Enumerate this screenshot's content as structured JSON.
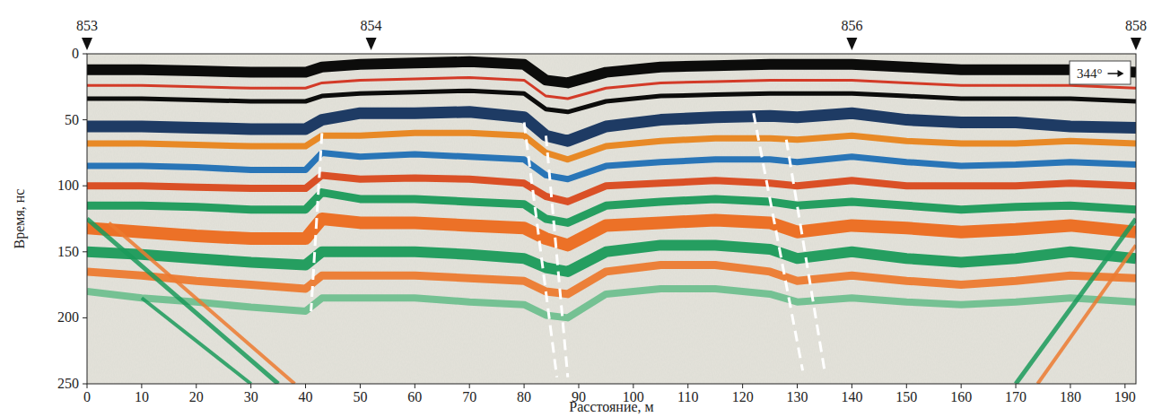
{
  "chart_data": {
    "type": "radargram",
    "x_label": "Расстояние, м",
    "y_label": "Время, нс",
    "xlim": [
      0,
      192
    ],
    "ylim": [
      0,
      250
    ],
    "xticks": [
      0,
      10,
      20,
      30,
      40,
      50,
      60,
      70,
      80,
      90,
      100,
      110,
      120,
      130,
      140,
      150,
      160,
      170,
      180,
      190
    ],
    "yticks": [
      0,
      50,
      100,
      150,
      200,
      250
    ],
    "direction_label": "344°",
    "pickets": [
      {
        "x": 0,
        "label": "853"
      },
      {
        "x": 52,
        "label": "854"
      },
      {
        "x": 140,
        "label": "856"
      },
      {
        "x": 192,
        "label": "858"
      }
    ],
    "series": [
      {
        "color": "#000000",
        "x": [
          0,
          10,
          20,
          30,
          40,
          43,
          50,
          60,
          70,
          80,
          84,
          88,
          95,
          105,
          115,
          125,
          130,
          140,
          150,
          160,
          170,
          180,
          192
        ],
        "values": [
          12,
          12,
          13,
          14,
          14,
          10,
          8,
          7,
          6,
          8,
          20,
          22,
          14,
          10,
          9,
          8,
          8,
          8,
          10,
          12,
          12,
          12,
          14
        ]
      },
      {
        "color": "#d2301e",
        "x": [
          0,
          10,
          20,
          30,
          40,
          43,
          50,
          60,
          70,
          80,
          84,
          88,
          95,
          105,
          115,
          125,
          130,
          140,
          150,
          160,
          170,
          180,
          192
        ],
        "values": [
          24,
          24,
          25,
          26,
          26,
          22,
          20,
          19,
          18,
          20,
          32,
          34,
          26,
          22,
          21,
          20,
          20,
          20,
          22,
          24,
          24,
          24,
          26
        ]
      },
      {
        "color": "#000000",
        "x": [
          0,
          10,
          20,
          30,
          40,
          43,
          50,
          60,
          70,
          80,
          84,
          88,
          95,
          105,
          115,
          125,
          130,
          140,
          150,
          160,
          170,
          180,
          192
        ],
        "values": [
          34,
          34,
          35,
          36,
          36,
          32,
          30,
          29,
          28,
          30,
          42,
          44,
          36,
          32,
          31,
          30,
          30,
          30,
          32,
          34,
          34,
          34,
          36
        ]
      },
      {
        "color": "#13325e",
        "x": [
          0,
          10,
          20,
          30,
          40,
          43,
          50,
          60,
          70,
          80,
          84,
          88,
          95,
          105,
          115,
          125,
          130,
          140,
          150,
          160,
          170,
          180,
          192
        ],
        "values": [
          55,
          55,
          56,
          57,
          57,
          50,
          45,
          45,
          44,
          48,
          62,
          66,
          55,
          50,
          48,
          47,
          48,
          45,
          50,
          52,
          52,
          55,
          56
        ]
      },
      {
        "color": "#e8841c",
        "x": [
          0,
          10,
          20,
          30,
          40,
          43,
          50,
          60,
          70,
          80,
          84,
          88,
          95,
          105,
          115,
          125,
          130,
          140,
          150,
          160,
          170,
          180,
          192
        ],
        "values": [
          68,
          68,
          69,
          70,
          70,
          62,
          62,
          60,
          60,
          62,
          75,
          80,
          70,
          66,
          64,
          64,
          65,
          62,
          66,
          68,
          68,
          66,
          68
        ]
      },
      {
        "color": "#1f6fb5",
        "x": [
          0,
          10,
          20,
          30,
          40,
          43,
          50,
          60,
          70,
          80,
          84,
          88,
          95,
          105,
          115,
          125,
          130,
          140,
          150,
          160,
          170,
          180,
          192
        ],
        "values": [
          85,
          85,
          86,
          88,
          88,
          75,
          78,
          76,
          78,
          80,
          92,
          95,
          85,
          82,
          80,
          80,
          82,
          78,
          82,
          85,
          84,
          82,
          84
        ]
      },
      {
        "color": "#d9481c",
        "x": [
          0,
          10,
          20,
          30,
          40,
          43,
          50,
          60,
          70,
          80,
          84,
          88,
          95,
          105,
          115,
          125,
          130,
          140,
          150,
          160,
          170,
          180,
          192
        ],
        "values": [
          100,
          100,
          101,
          102,
          102,
          92,
          95,
          94,
          95,
          98,
          108,
          112,
          100,
          98,
          96,
          98,
          100,
          96,
          100,
          100,
          100,
          98,
          100
        ]
      },
      {
        "color": "#1a9a5a",
        "x": [
          0,
          10,
          20,
          30,
          40,
          43,
          50,
          60,
          70,
          80,
          84,
          88,
          95,
          105,
          115,
          125,
          130,
          140,
          150,
          160,
          170,
          180,
          192
        ],
        "values": [
          115,
          115,
          116,
          118,
          118,
          105,
          110,
          110,
          112,
          114,
          125,
          128,
          115,
          112,
          110,
          112,
          115,
          112,
          115,
          118,
          116,
          115,
          118
        ]
      },
      {
        "color": "#ec6a1e",
        "x": [
          0,
          10,
          20,
          30,
          40,
          43,
          50,
          60,
          70,
          80,
          84,
          88,
          95,
          105,
          115,
          125,
          130,
          140,
          150,
          160,
          170,
          180,
          192
        ],
        "values": [
          132,
          135,
          138,
          140,
          140,
          125,
          128,
          128,
          130,
          132,
          140,
          145,
          130,
          128,
          126,
          128,
          135,
          130,
          132,
          135,
          133,
          130,
          135
        ]
      },
      {
        "color": "#1a9a5a",
        "x": [
          0,
          10,
          20,
          30,
          40,
          43,
          50,
          60,
          70,
          80,
          84,
          88,
          95,
          105,
          115,
          125,
          130,
          140,
          150,
          160,
          170,
          180,
          192
        ],
        "values": [
          150,
          152,
          155,
          158,
          160,
          150,
          150,
          150,
          152,
          155,
          162,
          165,
          150,
          145,
          145,
          148,
          155,
          150,
          155,
          158,
          155,
          150,
          155
        ]
      },
      {
        "color": "#ec7a30",
        "x": [
          0,
          10,
          20,
          30,
          40,
          43,
          50,
          60,
          70,
          80,
          84,
          88,
          95,
          105,
          115,
          125,
          130,
          140,
          150,
          160,
          170,
          180,
          192
        ],
        "values": [
          165,
          168,
          172,
          175,
          178,
          168,
          168,
          168,
          170,
          172,
          180,
          182,
          165,
          160,
          160,
          165,
          172,
          168,
          172,
          175,
          172,
          168,
          170
        ]
      },
      {
        "color": "#6fbf8f",
        "x": [
          0,
          10,
          20,
          30,
          40,
          43,
          50,
          60,
          70,
          80,
          84,
          88,
          95,
          105,
          115,
          125,
          130,
          140,
          150,
          160,
          170,
          180,
          192
        ],
        "values": [
          180,
          185,
          188,
          192,
          195,
          185,
          185,
          185,
          188,
          190,
          198,
          200,
          182,
          178,
          178,
          182,
          188,
          185,
          188,
          190,
          188,
          185,
          188
        ]
      },
      {
        "color": "#1a9a5a",
        "x": [
          0,
          35
        ],
        "values": [
          125,
          250
        ]
      },
      {
        "color": "#ec7a30",
        "x": [
          4,
          38
        ],
        "values": [
          128,
          250
        ]
      },
      {
        "color": "#1a9a5a",
        "x": [
          10,
          30
        ],
        "values": [
          185,
          250
        ]
      },
      {
        "color": "#1a9a5a",
        "x": [
          170,
          192
        ],
        "values": [
          250,
          125
        ]
      },
      {
        "color": "#ec7a30",
        "x": [
          174,
          192
        ],
        "values": [
          250,
          145
        ]
      }
    ],
    "faults": [
      {
        "x": [
          43,
          41
        ],
        "y": [
          60,
          195
        ]
      },
      {
        "x": [
          80,
          86
        ],
        "y": [
          52,
          245
        ]
      },
      {
        "x": [
          84,
          88
        ],
        "y": [
          62,
          245
        ]
      },
      {
        "x": [
          122,
          131
        ],
        "y": [
          45,
          240
        ]
      },
      {
        "x": [
          128,
          135
        ],
        "y": [
          65,
          240
        ]
      }
    ]
  }
}
